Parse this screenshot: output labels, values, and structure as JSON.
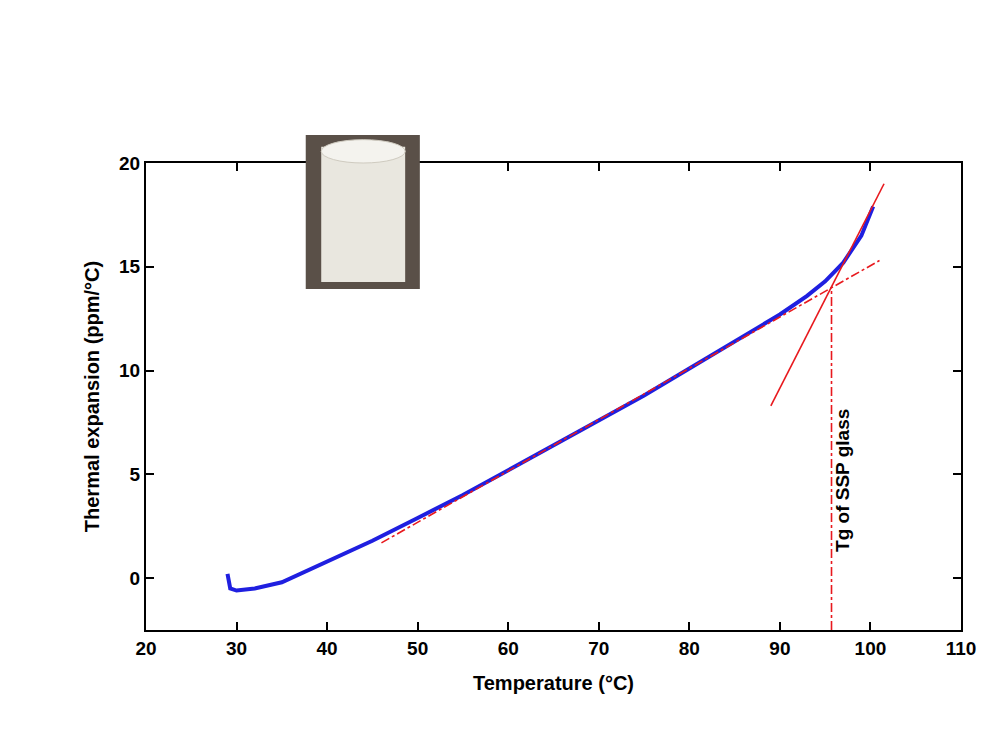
{
  "chart_data": {
    "type": "line",
    "x_label": "Temperature (°C)",
    "y_label": "Thermal expansion (ppm/°C)",
    "xlim": [
      20,
      110
    ],
    "xticks": [
      20,
      30,
      40,
      50,
      60,
      70,
      80,
      90,
      100,
      110
    ],
    "ylim": [
      -2.5,
      20
    ],
    "yticks": [
      0,
      5,
      10,
      15,
      20
    ],
    "grid": false,
    "series": [
      {
        "color": "#1f1fe0",
        "line_style": "solid",
        "x": [
          29,
          29.3,
          30,
          32,
          35,
          40,
          45,
          50,
          55,
          60,
          65,
          70,
          75,
          80,
          85,
          90,
          93,
          95,
          97,
          99,
          100.3
        ],
        "values": [
          0.2,
          -0.5,
          -0.6,
          -0.5,
          -0.2,
          0.8,
          1.8,
          2.9,
          4.0,
          5.2,
          6.4,
          7.6,
          8.8,
          10.1,
          11.4,
          12.7,
          13.6,
          14.3,
          15.2,
          16.5,
          17.9
        ]
      },
      {
        "color": "#e8191e",
        "line_style": "dashdot",
        "x": [
          46,
          101
        ],
        "values": [
          1.7,
          15.3
        ]
      },
      {
        "color": "#e8191e",
        "line_style": "solid",
        "x": [
          89,
          101.5
        ],
        "values": [
          8.3,
          19
        ]
      },
      {
        "color": "#e8191e",
        "line_style": "dashdot",
        "x": [
          95.7,
          95.7
        ],
        "values": [
          -2.5,
          14
        ]
      }
    ],
    "annotations": [
      {
        "text": "Tg of SSP glass",
        "x": 96.9,
        "y": 4.7
      }
    ]
  }
}
